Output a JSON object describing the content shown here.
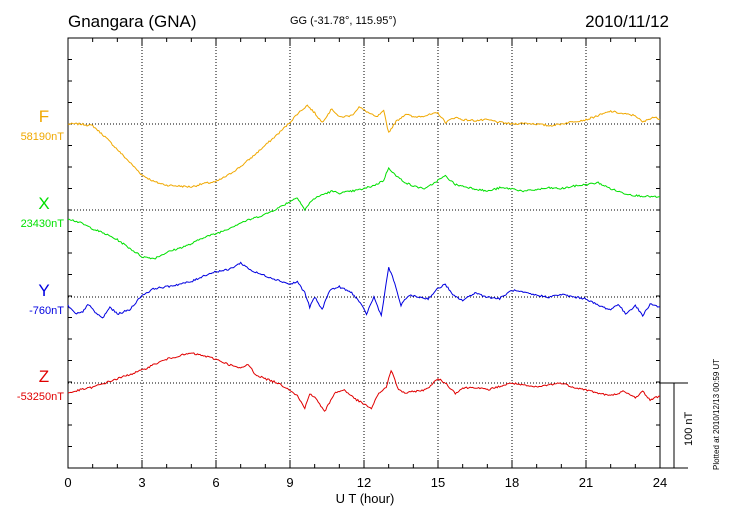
{
  "header": {
    "station": "Gnangara (GNA)",
    "coords": "GG (-31.78°, 115.95°)",
    "date": "2010/11/12"
  },
  "axis": {
    "xlabel": "U T (hour)",
    "ticks": [
      "0",
      "3",
      "6",
      "9",
      "12",
      "15",
      "18",
      "21",
      "24"
    ],
    "scale_label": "100 nT"
  },
  "plotted_note": "Plotted at 2010/12/13 00:59 UT",
  "chart_data": {
    "type": "line",
    "xlabel": "U T (hour)",
    "x_range": [
      0,
      24
    ],
    "x_ticks": [
      0,
      3,
      6,
      9,
      12,
      15,
      18,
      21,
      24
    ],
    "grid": true,
    "scale_bar_nT": 100,
    "series": [
      {
        "name": "F",
        "baseline_label": "58190nT",
        "baseline_nT": 58190,
        "color": "#f0a800",
        "points": [
          [
            0,
            58190
          ],
          [
            0.5,
            58190
          ],
          [
            1,
            58188
          ],
          [
            1.5,
            58175
          ],
          [
            2,
            58160
          ],
          [
            2.5,
            58145
          ],
          [
            3,
            58130
          ],
          [
            3.5,
            58122
          ],
          [
            4,
            58118
          ],
          [
            4.5,
            58117
          ],
          [
            5,
            58116
          ],
          [
            5.5,
            58120
          ],
          [
            6,
            58122
          ],
          [
            6.5,
            58130
          ],
          [
            7,
            58140
          ],
          [
            7.5,
            58152
          ],
          [
            8,
            58165
          ],
          [
            8.5,
            58178
          ],
          [
            9,
            58192
          ],
          [
            9.3,
            58202
          ],
          [
            9.7,
            58212
          ],
          [
            10,
            58203
          ],
          [
            10.3,
            58192
          ],
          [
            10.7,
            58208
          ],
          [
            11,
            58198
          ],
          [
            11.5,
            58200
          ],
          [
            11.8,
            58210
          ],
          [
            12.2,
            58203
          ],
          [
            12.5,
            58198
          ],
          [
            12.8,
            58205
          ],
          [
            13,
            58180
          ],
          [
            13.3,
            58193
          ],
          [
            13.7,
            58202
          ],
          [
            14,
            58198
          ],
          [
            14.5,
            58200
          ],
          [
            15,
            58203
          ],
          [
            15.3,
            58192
          ],
          [
            15.7,
            58198
          ],
          [
            16,
            58195
          ],
          [
            16.5,
            58194
          ],
          [
            17,
            58195
          ],
          [
            17.5,
            58192
          ],
          [
            18,
            58190
          ],
          [
            18.5,
            58191
          ],
          [
            19,
            58190
          ],
          [
            19.5,
            58188
          ],
          [
            20,
            58190
          ],
          [
            20.5,
            58193
          ],
          [
            21,
            58195
          ],
          [
            21.5,
            58200
          ],
          [
            22,
            58205
          ],
          [
            22.5,
            58202
          ],
          [
            23,
            58200
          ],
          [
            23.3,
            58192
          ],
          [
            23.7,
            58198
          ],
          [
            24,
            58196
          ]
        ]
      },
      {
        "name": "X",
        "baseline_label": "23430nT",
        "baseline_nT": 23430,
        "color": "#00e000",
        "points": [
          [
            0,
            23420
          ],
          [
            0.5,
            23415
          ],
          [
            1,
            23408
          ],
          [
            1.5,
            23402
          ],
          [
            2,
            23395
          ],
          [
            2.5,
            23385
          ],
          [
            3,
            23375
          ],
          [
            3.5,
            23373
          ],
          [
            4,
            23380
          ],
          [
            4.5,
            23385
          ],
          [
            5,
            23390
          ],
          [
            5.5,
            23398
          ],
          [
            6,
            23402
          ],
          [
            6.5,
            23408
          ],
          [
            7,
            23415
          ],
          [
            7.5,
            23420
          ],
          [
            8,
            23425
          ],
          [
            8.5,
            23432
          ],
          [
            9,
            23440
          ],
          [
            9.3,
            23445
          ],
          [
            9.6,
            23430
          ],
          [
            9.9,
            23442
          ],
          [
            10.3,
            23448
          ],
          [
            10.7,
            23452
          ],
          [
            11,
            23450
          ],
          [
            11.5,
            23452
          ],
          [
            12,
            23455
          ],
          [
            12.5,
            23460
          ],
          [
            12.8,
            23465
          ],
          [
            13,
            23480
          ],
          [
            13.3,
            23470
          ],
          [
            13.7,
            23462
          ],
          [
            14,
            23458
          ],
          [
            14.5,
            23455
          ],
          [
            15,
            23465
          ],
          [
            15.3,
            23470
          ],
          [
            15.7,
            23460
          ],
          [
            16,
            23458
          ],
          [
            16.5,
            23455
          ],
          [
            17,
            23452
          ],
          [
            17.5,
            23456
          ],
          [
            18,
            23455
          ],
          [
            18.5,
            23452
          ],
          [
            19,
            23454
          ],
          [
            19.5,
            23456
          ],
          [
            20,
            23455
          ],
          [
            20.5,
            23458
          ],
          [
            21,
            23460
          ],
          [
            21.5,
            23462
          ],
          [
            22,
            23455
          ],
          [
            22.5,
            23450
          ],
          [
            23,
            23447
          ],
          [
            23.5,
            23446
          ],
          [
            24,
            23445
          ]
        ]
      },
      {
        "name": "Y",
        "baseline_label": "-760nT",
        "baseline_nT": -760,
        "color": "#0000e0",
        "points": [
          [
            0,
            -770
          ],
          [
            0.3,
            -780
          ],
          [
            0.6,
            -778
          ],
          [
            0.8,
            -768
          ],
          [
            1.1,
            -778
          ],
          [
            1.4,
            -785
          ],
          [
            1.7,
            -772
          ],
          [
            2,
            -780
          ],
          [
            2.5,
            -775
          ],
          [
            3,
            -758
          ],
          [
            3.5,
            -750
          ],
          [
            4,
            -748
          ],
          [
            4.5,
            -745
          ],
          [
            5,
            -742
          ],
          [
            5.5,
            -735
          ],
          [
            6,
            -730
          ],
          [
            6.5,
            -728
          ],
          [
            7,
            -720
          ],
          [
            7.5,
            -730
          ],
          [
            8,
            -735
          ],
          [
            8.5,
            -740
          ],
          [
            9,
            -745
          ],
          [
            9.3,
            -742
          ],
          [
            9.6,
            -755
          ],
          [
            9.8,
            -772
          ],
          [
            10,
            -760
          ],
          [
            10.3,
            -775
          ],
          [
            10.6,
            -752
          ],
          [
            11,
            -748
          ],
          [
            11.5,
            -755
          ],
          [
            11.8,
            -765
          ],
          [
            12.1,
            -780
          ],
          [
            12.4,
            -760
          ],
          [
            12.7,
            -782
          ],
          [
            13,
            -725
          ],
          [
            13.2,
            -740
          ],
          [
            13.5,
            -770
          ],
          [
            13.8,
            -758
          ],
          [
            14.2,
            -760
          ],
          [
            14.6,
            -762
          ],
          [
            15,
            -750
          ],
          [
            15.3,
            -745
          ],
          [
            15.6,
            -758
          ],
          [
            16,
            -764
          ],
          [
            16.5,
            -755
          ],
          [
            17,
            -760
          ],
          [
            17.5,
            -762
          ],
          [
            18,
            -752
          ],
          [
            18.5,
            -755
          ],
          [
            19,
            -758
          ],
          [
            19.5,
            -760
          ],
          [
            20,
            -757
          ],
          [
            20.5,
            -760
          ],
          [
            21,
            -762
          ],
          [
            21.5,
            -770
          ],
          [
            22,
            -775
          ],
          [
            22.3,
            -768
          ],
          [
            22.6,
            -780
          ],
          [
            23,
            -770
          ],
          [
            23.3,
            -782
          ],
          [
            23.6,
            -768
          ],
          [
            24,
            -772
          ]
        ]
      },
      {
        "name": "Z",
        "baseline_label": "-53250nT",
        "baseline_nT": -53250,
        "color": "#e00000",
        "points": [
          [
            0,
            -53262
          ],
          [
            0.5,
            -53258
          ],
          [
            1,
            -53255
          ],
          [
            1.5,
            -53250
          ],
          [
            2,
            -53245
          ],
          [
            2.5,
            -53240
          ],
          [
            3,
            -53235
          ],
          [
            3.5,
            -53228
          ],
          [
            4,
            -53222
          ],
          [
            4.5,
            -53218
          ],
          [
            5,
            -53215
          ],
          [
            5.5,
            -53218
          ],
          [
            6,
            -53222
          ],
          [
            6.5,
            -53228
          ],
          [
            7,
            -53233
          ],
          [
            7.3,
            -53228
          ],
          [
            7.6,
            -53240
          ],
          [
            8,
            -53245
          ],
          [
            8.5,
            -53250
          ],
          [
            9,
            -53258
          ],
          [
            9.3,
            -53265
          ],
          [
            9.6,
            -53280
          ],
          [
            9.8,
            -53262
          ],
          [
            10.1,
            -53270
          ],
          [
            10.4,
            -53284
          ],
          [
            10.8,
            -53262
          ],
          [
            11.2,
            -53258
          ],
          [
            11.6,
            -53268
          ],
          [
            12,
            -53275
          ],
          [
            12.3,
            -53280
          ],
          [
            12.6,
            -53262
          ],
          [
            12.9,
            -53255
          ],
          [
            13.1,
            -53235
          ],
          [
            13.4,
            -53258
          ],
          [
            13.7,
            -53262
          ],
          [
            14,
            -53260
          ],
          [
            14.5,
            -53258
          ],
          [
            15,
            -53245
          ],
          [
            15.3,
            -53250
          ],
          [
            15.7,
            -53262
          ],
          [
            16,
            -53256
          ],
          [
            16.5,
            -53255
          ],
          [
            17,
            -53258
          ],
          [
            17.5,
            -53254
          ],
          [
            18,
            -53250
          ],
          [
            18.5,
            -53253
          ],
          [
            19,
            -53255
          ],
          [
            19.5,
            -53252
          ],
          [
            20,
            -53250
          ],
          [
            20.5,
            -53255
          ],
          [
            21,
            -53258
          ],
          [
            21.5,
            -53262
          ],
          [
            22,
            -53265
          ],
          [
            22.5,
            -53260
          ],
          [
            23,
            -53267
          ],
          [
            23.3,
            -53260
          ],
          [
            23.6,
            -53270
          ],
          [
            24,
            -53265
          ]
        ]
      }
    ]
  }
}
